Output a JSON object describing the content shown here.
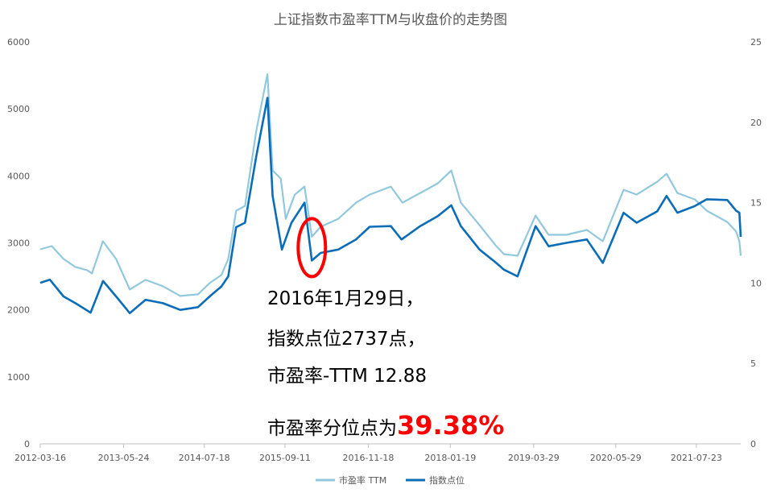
{
  "chart_data": {
    "type": "line",
    "title": "上证指数市盈率TTM与收盘价的走势图",
    "x_ticks": [
      "2012-03-16",
      "2013-05-24",
      "2014-07-18",
      "2015-09-11",
      "2016-11-18",
      "2018-01-19",
      "2019-03-29",
      "2020-05-29",
      "2021-07-23"
    ],
    "x_range": [
      "2012-03-16",
      "2022-03-11"
    ],
    "y_left": {
      "min": 0,
      "max": 6000,
      "ticks": [
        "0",
        "1000",
        "2000",
        "3000",
        "4000",
        "5000",
        "6000"
      ]
    },
    "y_right": {
      "min": 0,
      "max": 25,
      "ticks": [
        "0",
        "5",
        "10",
        "15",
        "20",
        "25"
      ]
    },
    "grid": false,
    "legend_position": "bottom",
    "series": [
      {
        "name": "市盈率 TTM",
        "axis": "right",
        "color": "#92c8dc",
        "points": [
          [
            "2012-03-16",
            12.1
          ],
          [
            "2012-05-15",
            12.3
          ],
          [
            "2012-07-15",
            11.5
          ],
          [
            "2012-09-15",
            11.0
          ],
          [
            "2012-11-15",
            10.8
          ],
          [
            "2012-12-10",
            10.6
          ],
          [
            "2013-02-05",
            12.6
          ],
          [
            "2013-04-15",
            11.5
          ],
          [
            "2013-06-25",
            9.6
          ],
          [
            "2013-09-15",
            10.2
          ],
          [
            "2013-12-15",
            9.8
          ],
          [
            "2014-03-15",
            9.2
          ],
          [
            "2014-06-15",
            9.3
          ],
          [
            "2014-08-15",
            10.0
          ],
          [
            "2014-10-15",
            10.5
          ],
          [
            "2014-11-20",
            11.5
          ],
          [
            "2014-12-31",
            14.5
          ],
          [
            "2015-02-15",
            14.8
          ],
          [
            "2015-04-15",
            19.5
          ],
          [
            "2015-06-12",
            23.0
          ],
          [
            "2015-07-09",
            17.0
          ],
          [
            "2015-08-20",
            16.5
          ],
          [
            "2015-09-15",
            14.0
          ],
          [
            "2015-11-01",
            15.5
          ],
          [
            "2015-12-22",
            16.0
          ],
          [
            "2016-01-29",
            12.88
          ],
          [
            "2016-03-15",
            13.5
          ],
          [
            "2016-06-15",
            14.0
          ],
          [
            "2016-09-15",
            15.0
          ],
          [
            "2016-11-25",
            15.5
          ],
          [
            "2017-03-15",
            16.0
          ],
          [
            "2017-05-15",
            15.0
          ],
          [
            "2017-08-15",
            15.6
          ],
          [
            "2017-11-15",
            16.2
          ],
          [
            "2018-01-24",
            17.0
          ],
          [
            "2018-03-15",
            15.0
          ],
          [
            "2018-06-20",
            13.6
          ],
          [
            "2018-09-15",
            12.3
          ],
          [
            "2018-10-25",
            11.8
          ],
          [
            "2019-01-04",
            11.7
          ],
          [
            "2019-04-08",
            14.2
          ],
          [
            "2019-06-15",
            13.0
          ],
          [
            "2019-09-15",
            13.0
          ],
          [
            "2019-12-31",
            13.3
          ],
          [
            "2020-03-23",
            12.6
          ],
          [
            "2020-07-09",
            15.8
          ],
          [
            "2020-09-15",
            15.5
          ],
          [
            "2020-12-31",
            16.3
          ],
          [
            "2021-02-18",
            16.8
          ],
          [
            "2021-04-15",
            15.6
          ],
          [
            "2021-07-15",
            15.2
          ],
          [
            "2021-09-15",
            14.5
          ],
          [
            "2021-12-31",
            13.8
          ],
          [
            "2022-02-15",
            13.2
          ],
          [
            "2022-03-04",
            12.6
          ],
          [
            "2022-03-11",
            11.7
          ]
        ]
      },
      {
        "name": "指数点位",
        "axis": "left",
        "color": "#0b6db7",
        "points": [
          [
            "2012-03-16",
            2404
          ],
          [
            "2012-05-05",
            2450
          ],
          [
            "2012-07-15",
            2200
          ],
          [
            "2012-09-15",
            2100
          ],
          [
            "2012-12-03",
            1959
          ],
          [
            "2013-02-06",
            2430
          ],
          [
            "2013-04-15",
            2200
          ],
          [
            "2013-06-25",
            1950
          ],
          [
            "2013-09-15",
            2150
          ],
          [
            "2013-12-15",
            2100
          ],
          [
            "2014-03-15",
            2000
          ],
          [
            "2014-06-15",
            2040
          ],
          [
            "2014-08-15",
            2200
          ],
          [
            "2014-10-15",
            2350
          ],
          [
            "2014-11-20",
            2500
          ],
          [
            "2014-12-31",
            3234
          ],
          [
            "2015-02-15",
            3300
          ],
          [
            "2015-04-15",
            4300
          ],
          [
            "2015-06-12",
            5166
          ],
          [
            "2015-07-09",
            3700
          ],
          [
            "2015-08-26",
            2900
          ],
          [
            "2015-10-15",
            3300
          ],
          [
            "2015-12-22",
            3600
          ],
          [
            "2016-01-29",
            2737
          ],
          [
            "2016-03-15",
            2850
          ],
          [
            "2016-06-15",
            2900
          ],
          [
            "2016-09-15",
            3050
          ],
          [
            "2016-11-25",
            3240
          ],
          [
            "2017-03-15",
            3250
          ],
          [
            "2017-05-10",
            3050
          ],
          [
            "2017-08-15",
            3250
          ],
          [
            "2017-11-15",
            3400
          ],
          [
            "2018-01-24",
            3560
          ],
          [
            "2018-03-15",
            3250
          ],
          [
            "2018-06-20",
            2900
          ],
          [
            "2018-09-15",
            2700
          ],
          [
            "2018-10-25",
            2600
          ],
          [
            "2019-01-04",
            2500
          ],
          [
            "2019-04-08",
            3250
          ],
          [
            "2019-06-15",
            2950
          ],
          [
            "2019-09-15",
            3000
          ],
          [
            "2019-12-31",
            3050
          ],
          [
            "2020-03-23",
            2700
          ],
          [
            "2020-07-09",
            3450
          ],
          [
            "2020-09-15",
            3300
          ],
          [
            "2020-12-31",
            3470
          ],
          [
            "2021-02-18",
            3700
          ],
          [
            "2021-04-15",
            3450
          ],
          [
            "2021-07-15",
            3550
          ],
          [
            "2021-09-15",
            3650
          ],
          [
            "2021-12-31",
            3640
          ],
          [
            "2022-02-15",
            3480
          ],
          [
            "2022-03-04",
            3450
          ],
          [
            "2022-03-11",
            3090
          ]
        ]
      }
    ],
    "annotation": {
      "date": "2016-01-29",
      "lines": [
        "2016年1月29日，",
        "指数点位2737点，",
        "市盈率-TTM 12.88"
      ],
      "last_prefix": "市盈率分位点为",
      "last_value": "39.38%"
    }
  }
}
